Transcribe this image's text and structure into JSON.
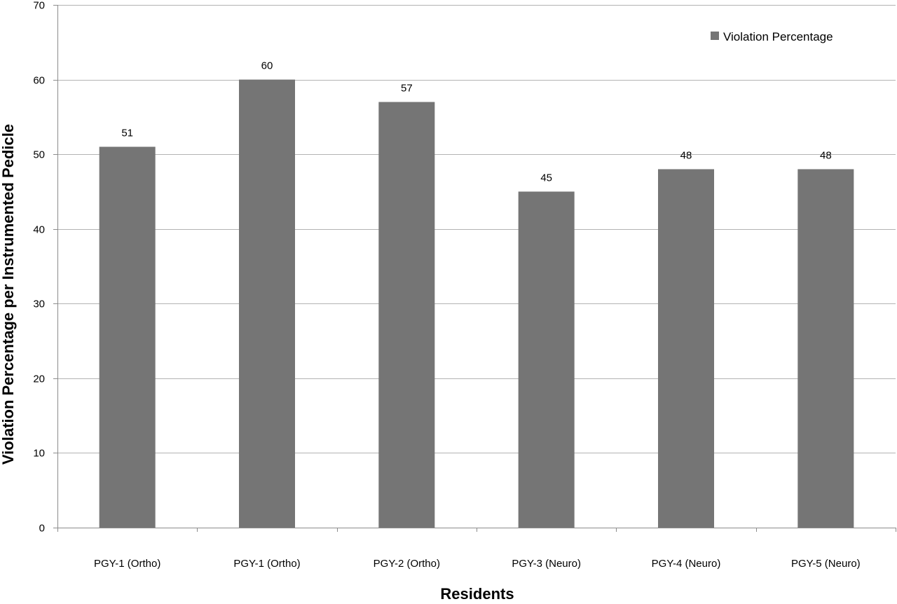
{
  "chart_data": {
    "type": "bar",
    "title": "",
    "xlabel": "Residents",
    "ylabel": "Violation Percentage per Instrumented Pedicle",
    "categories": [
      "PGY-1 (Ortho)",
      "PGY-1 (Ortho)",
      "PGY-2 (Ortho)",
      "PGY-3 (Neuro)",
      "PGY-4 (Neuro)",
      "PGY-5 (Neuro)"
    ],
    "series": [
      {
        "name": "Violation Percentage",
        "values": [
          51,
          60,
          57,
          45,
          48,
          48
        ]
      }
    ],
    "ylim": [
      0,
      70
    ],
    "yticks": [
      0,
      10,
      20,
      30,
      40,
      50,
      60,
      70
    ],
    "grid": true,
    "legend": "top-right",
    "data_labels": true,
    "colors": {
      "bar": "#757575",
      "grid": "#b3b3b3",
      "axis": "#8c8c8c"
    }
  }
}
